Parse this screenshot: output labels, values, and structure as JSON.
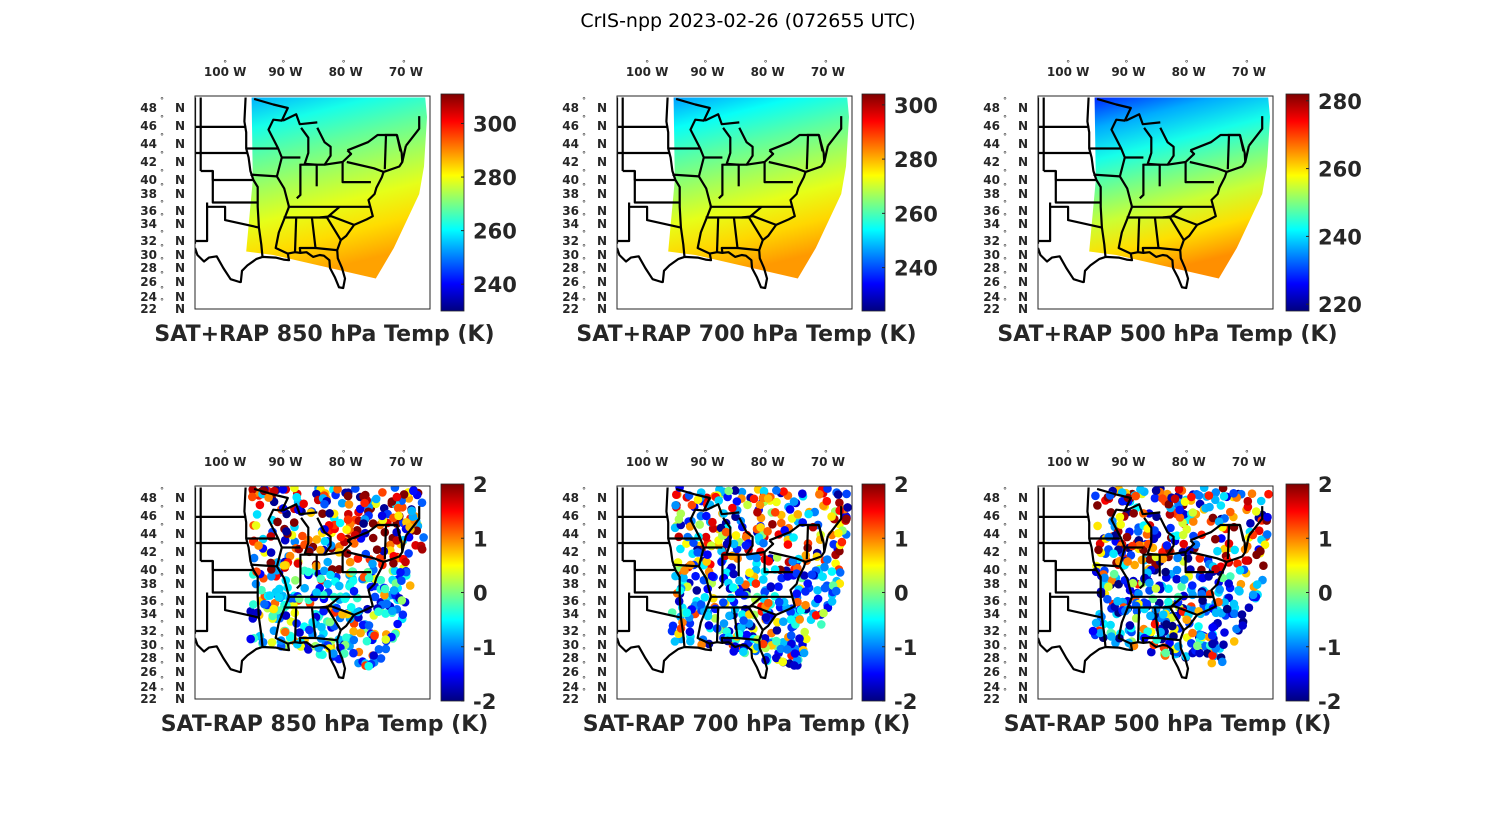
{
  "figure": {
    "title": "CrIS-npp 2023-02-26 (072655 UTC)"
  },
  "colormap": {
    "name": "jet",
    "stops": [
      "#00007f",
      "#0000ff",
      "#007fff",
      "#00ffff",
      "#7fff7f",
      "#ffff00",
      "#ff7f00",
      "#ff0000",
      "#7f0000"
    ]
  },
  "map_style": {
    "outline_color": "#000000",
    "axes_color": "#262626"
  },
  "chart_data": [
    {
      "type": "heatmap",
      "subtype": "geographic-scatter",
      "title": "SAT+RAP 850 hPa Temp (K)",
      "xlabel": "",
      "ylabel": "",
      "lon_ticks": [
        "100° W",
        "90° W",
        "80° W",
        "70° W"
      ],
      "lat_ticks": [
        "48° N",
        "46° N",
        "44° N",
        "42° N",
        "40° N",
        "38° N",
        "36° N",
        "34° N",
        "32° N",
        "30° N",
        "28° N",
        "26° N",
        "24° N",
        "22° N"
      ],
      "colorbar": {
        "min": 230,
        "max": 311,
        "ticks": [
          240,
          260,
          280,
          300
        ],
        "units": "K"
      },
      "field": "total",
      "values_summary": {
        "north": 262,
        "south": 288
      }
    },
    {
      "type": "heatmap",
      "subtype": "geographic-scatter",
      "title": "SAT+RAP 700 hPa Temp (K)",
      "xlabel": "",
      "ylabel": "",
      "lon_ticks": [
        "100° W",
        "90° W",
        "80° W",
        "70° W"
      ],
      "lat_ticks": [
        "48° N",
        "46° N",
        "44° N",
        "42° N",
        "40° N",
        "38° N",
        "36° N",
        "34° N",
        "32° N",
        "30° N",
        "28° N",
        "26° N",
        "24° N",
        "22° N"
      ],
      "colorbar": {
        "min": 224,
        "max": 304,
        "ticks": [
          240,
          260,
          280,
          300
        ],
        "units": "K"
      },
      "field": "total",
      "values_summary": {
        "north": 254,
        "south": 282
      }
    },
    {
      "type": "heatmap",
      "subtype": "geographic-scatter",
      "title": "SAT+RAP 500 hPa Temp (K)",
      "xlabel": "",
      "ylabel": "",
      "lon_ticks": [
        "100° W",
        "90° W",
        "80° W",
        "70° W"
      ],
      "lat_ticks": [
        "48° N",
        "46° N",
        "44° N",
        "42° N",
        "40° N",
        "38° N",
        "36° N",
        "34° N",
        "32° N",
        "30° N",
        "28° N",
        "26° N",
        "24° N",
        "22° N"
      ],
      "colorbar": {
        "min": 218,
        "max": 282,
        "ticks": [
          220,
          240,
          260,
          280
        ],
        "units": "K"
      },
      "field": "total",
      "values_summary": {
        "north": 236,
        "south": 265
      }
    },
    {
      "type": "heatmap",
      "subtype": "geographic-scatter",
      "title": "SAT-RAP 850 hPa Temp (K)",
      "xlabel": "",
      "ylabel": "",
      "lon_ticks": [
        "100° W",
        "90° W",
        "80° W",
        "70° W"
      ],
      "lat_ticks": [
        "48° N",
        "46° N",
        "44° N",
        "42° N",
        "40° N",
        "38° N",
        "36° N",
        "34° N",
        "32° N",
        "30° N",
        "28° N",
        "26° N",
        "24° N",
        "22° N"
      ],
      "colorbar": {
        "min": -2,
        "max": 2,
        "ticks": [
          -2,
          -1,
          0,
          1,
          2
        ],
        "units": "K"
      },
      "field": "difference",
      "values_summary": {
        "north": 1.2,
        "south": -1.0
      }
    },
    {
      "type": "heatmap",
      "subtype": "geographic-scatter",
      "title": "SAT-RAP 700 hPa Temp (K)",
      "xlabel": "",
      "ylabel": "",
      "lon_ticks": [
        "100° W",
        "90° W",
        "80° W",
        "70° W"
      ],
      "lat_ticks": [
        "48° N",
        "46° N",
        "44° N",
        "42° N",
        "40° N",
        "38° N",
        "36° N",
        "34° N",
        "32° N",
        "30° N",
        "28° N",
        "26° N",
        "24° N",
        "22° N"
      ],
      "colorbar": {
        "min": -2,
        "max": 2,
        "ticks": [
          -2,
          -1,
          0,
          1,
          2
        ],
        "units": "K"
      },
      "field": "difference",
      "values_summary": {
        "north": 0.8,
        "south": -1.2
      }
    },
    {
      "type": "heatmap",
      "subtype": "geographic-scatter",
      "title": "SAT-RAP 500 hPa Temp (K)",
      "xlabel": "",
      "ylabel": "",
      "lon_ticks": [
        "100° W",
        "90° W",
        "80° W",
        "70° W"
      ],
      "lat_ticks": [
        "48° N",
        "46° N",
        "44° N",
        "42° N",
        "40° N",
        "38° N",
        "36° N",
        "34° N",
        "32° N",
        "30° N",
        "28° N",
        "26° N",
        "24° N",
        "22° N"
      ],
      "colorbar": {
        "min": -2,
        "max": 2,
        "ticks": [
          -2,
          -1,
          0,
          1,
          2
        ],
        "units": "K"
      },
      "field": "difference",
      "values_summary": {
        "north": 1.1,
        "south": -1.4
      }
    }
  ]
}
